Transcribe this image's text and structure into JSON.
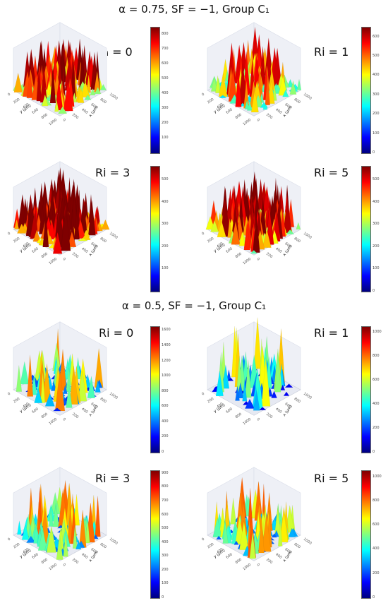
{
  "sections": [
    {
      "title": "α = 0.75, SF = −1,  Group C₁"
    },
    {
      "title": "α = 0.5, SF = −1,  Group C₁"
    }
  ],
  "colors": {
    "jet": [
      "#00007f",
      "#0000ff",
      "#0080ff",
      "#00ffff",
      "#80ff80",
      "#ffff00",
      "#ff8000",
      "#ff0000",
      "#7f0000"
    ]
  },
  "chart_data": [
    {
      "type": "surface3d",
      "title": "Rᵢ = 0",
      "xlabel": "x (μm)",
      "ylabel": "y (μm)",
      "x_ticks": [
        "0",
        "200",
        "400",
        "600",
        "800",
        "1000"
      ],
      "y_ticks": [
        "0",
        "200",
        "400",
        "600",
        "800",
        "1000"
      ],
      "colorbar_ticks": [
        "100",
        "200",
        "300",
        "400",
        "500",
        "600",
        "700",
        "800"
      ],
      "zlim": [
        0,
        850
      ]
    },
    {
      "type": "surface3d",
      "title": "Ri = 1",
      "xlabel": "x (μm)",
      "ylabel": "y (μm)",
      "x_ticks": [
        "0",
        "200",
        "400",
        "600",
        "800",
        "1000"
      ],
      "y_ticks": [
        "0",
        "200",
        "400",
        "600",
        "800",
        "1000"
      ],
      "colorbar_ticks": [
        "0",
        "100",
        "200",
        "300",
        "400",
        "500",
        "600"
      ],
      "zlim": [
        0,
        650
      ]
    },
    {
      "type": "surface3d",
      "title": "Ri = 3",
      "xlabel": "x (μm)",
      "ylabel": "y (μm)",
      "x_ticks": [
        "0",
        "200",
        "400",
        "600",
        "800",
        "1000"
      ],
      "y_ticks": [
        "0",
        "200",
        "400",
        "600",
        "800",
        "1000"
      ],
      "colorbar_ticks": [
        "100",
        "200",
        "300",
        "400",
        "500"
      ],
      "zlim": [
        0,
        560
      ]
    },
    {
      "type": "surface3d",
      "title": "Ri = 5",
      "xlabel": "x (μm)",
      "ylabel": "y (μm)",
      "x_ticks": [
        "0",
        "200",
        "400",
        "600",
        "800",
        "1000"
      ],
      "y_ticks": [
        "0",
        "200",
        "400",
        "600",
        "800",
        "1000"
      ],
      "colorbar_ticks": [
        "0",
        "100",
        "200",
        "300",
        "400",
        "500"
      ],
      "zlim": [
        0,
        560
      ]
    },
    {
      "type": "surface3d",
      "title": "Ri = 0",
      "xlabel": "x (μm)",
      "ylabel": "y (μm)",
      "x_ticks": [
        "0",
        "200",
        "400",
        "600",
        "800",
        "1000"
      ],
      "y_ticks": [
        "0",
        "200",
        "400",
        "600",
        "800",
        "1000"
      ],
      "colorbar_ticks": [
        "0",
        "200",
        "400",
        "600",
        "800",
        "1000",
        "1200",
        "1400",
        "1600"
      ],
      "zlim": [
        0,
        1650
      ]
    },
    {
      "type": "surface3d",
      "title": "Ri = 1",
      "xlabel": "x (μm)",
      "ylabel": "y (μm)",
      "x_ticks": [
        "0",
        "200",
        "400",
        "600",
        "800",
        "1000"
      ],
      "y_ticks": [
        "0",
        "200",
        "400",
        "600",
        "800",
        "1000"
      ],
      "colorbar_ticks": [
        "0",
        "200",
        "400",
        "600",
        "800",
        "1000"
      ],
      "zlim": [
        0,
        1050
      ]
    },
    {
      "type": "surface3d",
      "title": "Ri = 3",
      "xlabel": "x (μm)",
      "ylabel": "y (μm)",
      "x_ticks": [
        "0",
        "200",
        "400",
        "600",
        "800",
        "1000"
      ],
      "y_ticks": [
        "0",
        "200",
        "400",
        "600",
        "800",
        "1000"
      ],
      "colorbar_ticks": [
        "0",
        "100",
        "200",
        "300",
        "400",
        "500",
        "600",
        "700",
        "800",
        "900"
      ],
      "zlim": [
        0,
        920
      ]
    },
    {
      "type": "surface3d",
      "title": "Ri = 5",
      "xlabel": "x (μm)",
      "ylabel": "y (μm)",
      "x_ticks": [
        "0",
        "200",
        "400",
        "600",
        "800",
        "1000"
      ],
      "y_ticks": [
        "0",
        "200",
        "400",
        "600",
        "800",
        "1000"
      ],
      "colorbar_ticks": [
        "0",
        "200",
        "400",
        "600",
        "800",
        "1000"
      ],
      "zlim": [
        0,
        1050
      ]
    }
  ]
}
